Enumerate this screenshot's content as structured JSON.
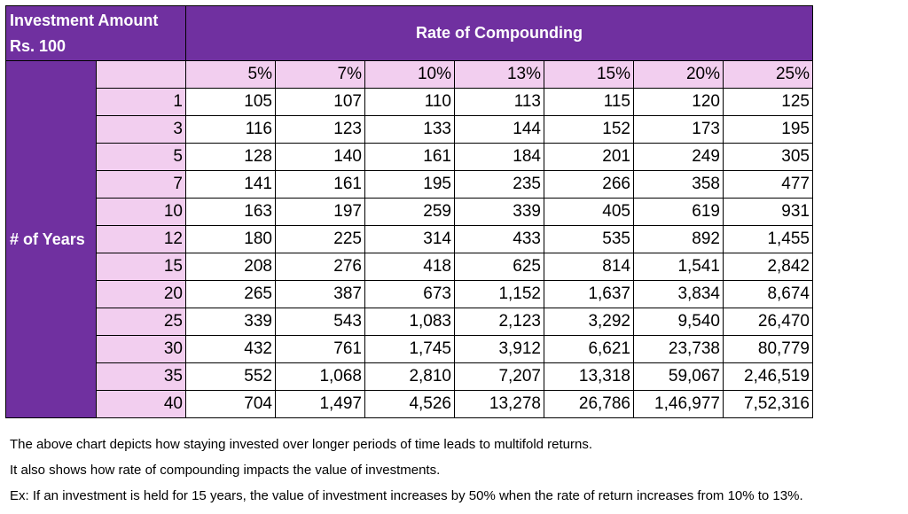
{
  "header": {
    "investment_line1": "Investment Amount",
    "investment_line2": "Rs. 100",
    "rate_title": "Rate of Compounding",
    "years_label": "# of Years"
  },
  "rates": [
    "5%",
    "7%",
    "10%",
    "13%",
    "15%",
    "20%",
    "25%"
  ],
  "rows": [
    {
      "years": "1",
      "values": [
        "105",
        "107",
        "110",
        "113",
        "115",
        "120",
        "125"
      ]
    },
    {
      "years": "3",
      "values": [
        "116",
        "123",
        "133",
        "144",
        "152",
        "173",
        "195"
      ]
    },
    {
      "years": "5",
      "values": [
        "128",
        "140",
        "161",
        "184",
        "201",
        "249",
        "305"
      ]
    },
    {
      "years": "7",
      "values": [
        "141",
        "161",
        "195",
        "235",
        "266",
        "358",
        "477"
      ]
    },
    {
      "years": "10",
      "values": [
        "163",
        "197",
        "259",
        "339",
        "405",
        "619",
        "931"
      ]
    },
    {
      "years": "12",
      "values": [
        "180",
        "225",
        "314",
        "433",
        "535",
        "892",
        "1,455"
      ]
    },
    {
      "years": "15",
      "values": [
        "208",
        "276",
        "418",
        "625",
        "814",
        "1,541",
        "2,842"
      ]
    },
    {
      "years": "20",
      "values": [
        "265",
        "387",
        "673",
        "1,152",
        "1,637",
        "3,834",
        "8,674"
      ]
    },
    {
      "years": "25",
      "values": [
        "339",
        "543",
        "1,083",
        "2,123",
        "3,292",
        "9,540",
        "26,470"
      ]
    },
    {
      "years": "30",
      "values": [
        "432",
        "761",
        "1,745",
        "3,912",
        "6,621",
        "23,738",
        "80,779"
      ]
    },
    {
      "years": "35",
      "values": [
        "552",
        "1,068",
        "2,810",
        "7,207",
        "13,318",
        "59,067",
        "2,46,519"
      ]
    },
    {
      "years": "40",
      "values": [
        "704",
        "1,497",
        "4,526",
        "13,278",
        "26,786",
        "1,46,977",
        "7,52,316"
      ]
    }
  ],
  "notes": [
    "The above chart depicts how staying invested over longer periods of time leads to multifold returns.",
    "It also shows how rate of compounding impacts the value of investments.",
    "Ex: If an investment is held for 15 years, the value of investment increases by 50% when the rate of return increases from 10% to 13%."
  ],
  "colors": {
    "header_purple": "#7030a0",
    "label_pink": "#f2ceef",
    "cell_white": "#ffffff"
  }
}
